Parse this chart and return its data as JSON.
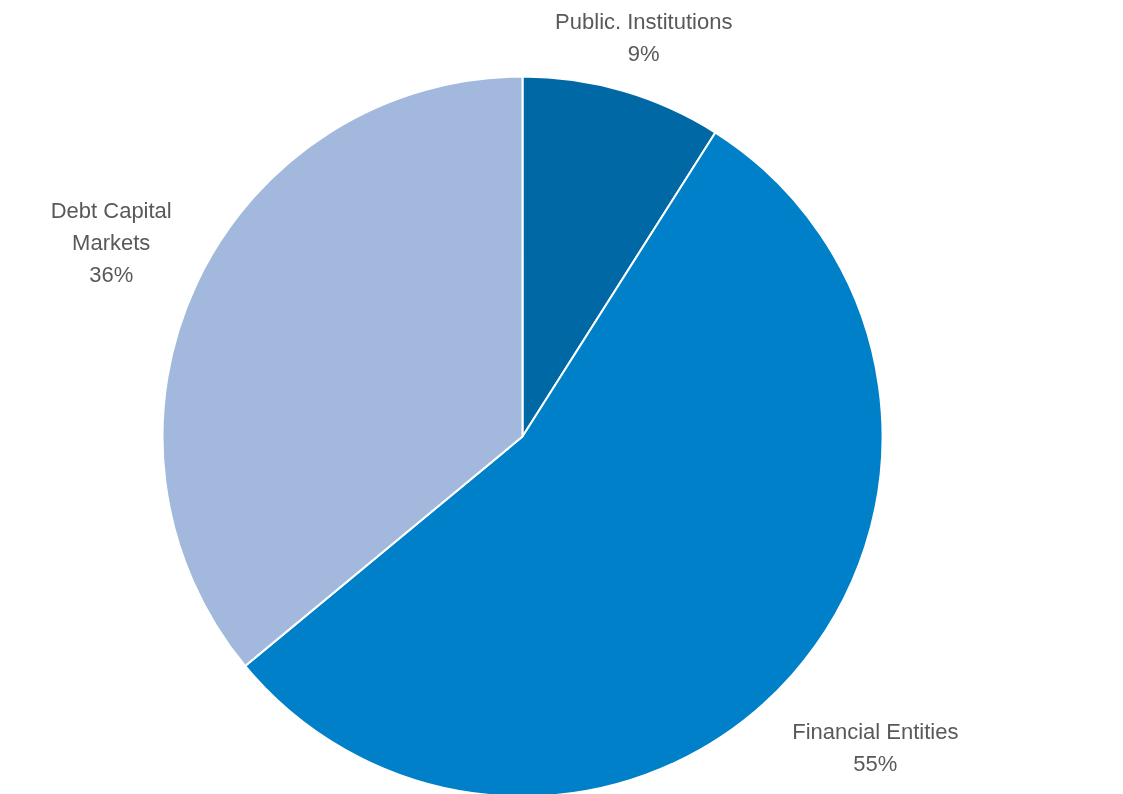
{
  "chart_data": {
    "type": "pie",
    "categories": [
      "Public. Institutions",
      "Financial Entities",
      "Debt Capital Markets"
    ],
    "values": [
      9,
      55,
      36
    ],
    "colors": [
      "#0068a5",
      "#0080c8",
      "#a2b9dd"
    ],
    "value_labels": [
      "9%",
      "55%",
      "36%"
    ]
  }
}
